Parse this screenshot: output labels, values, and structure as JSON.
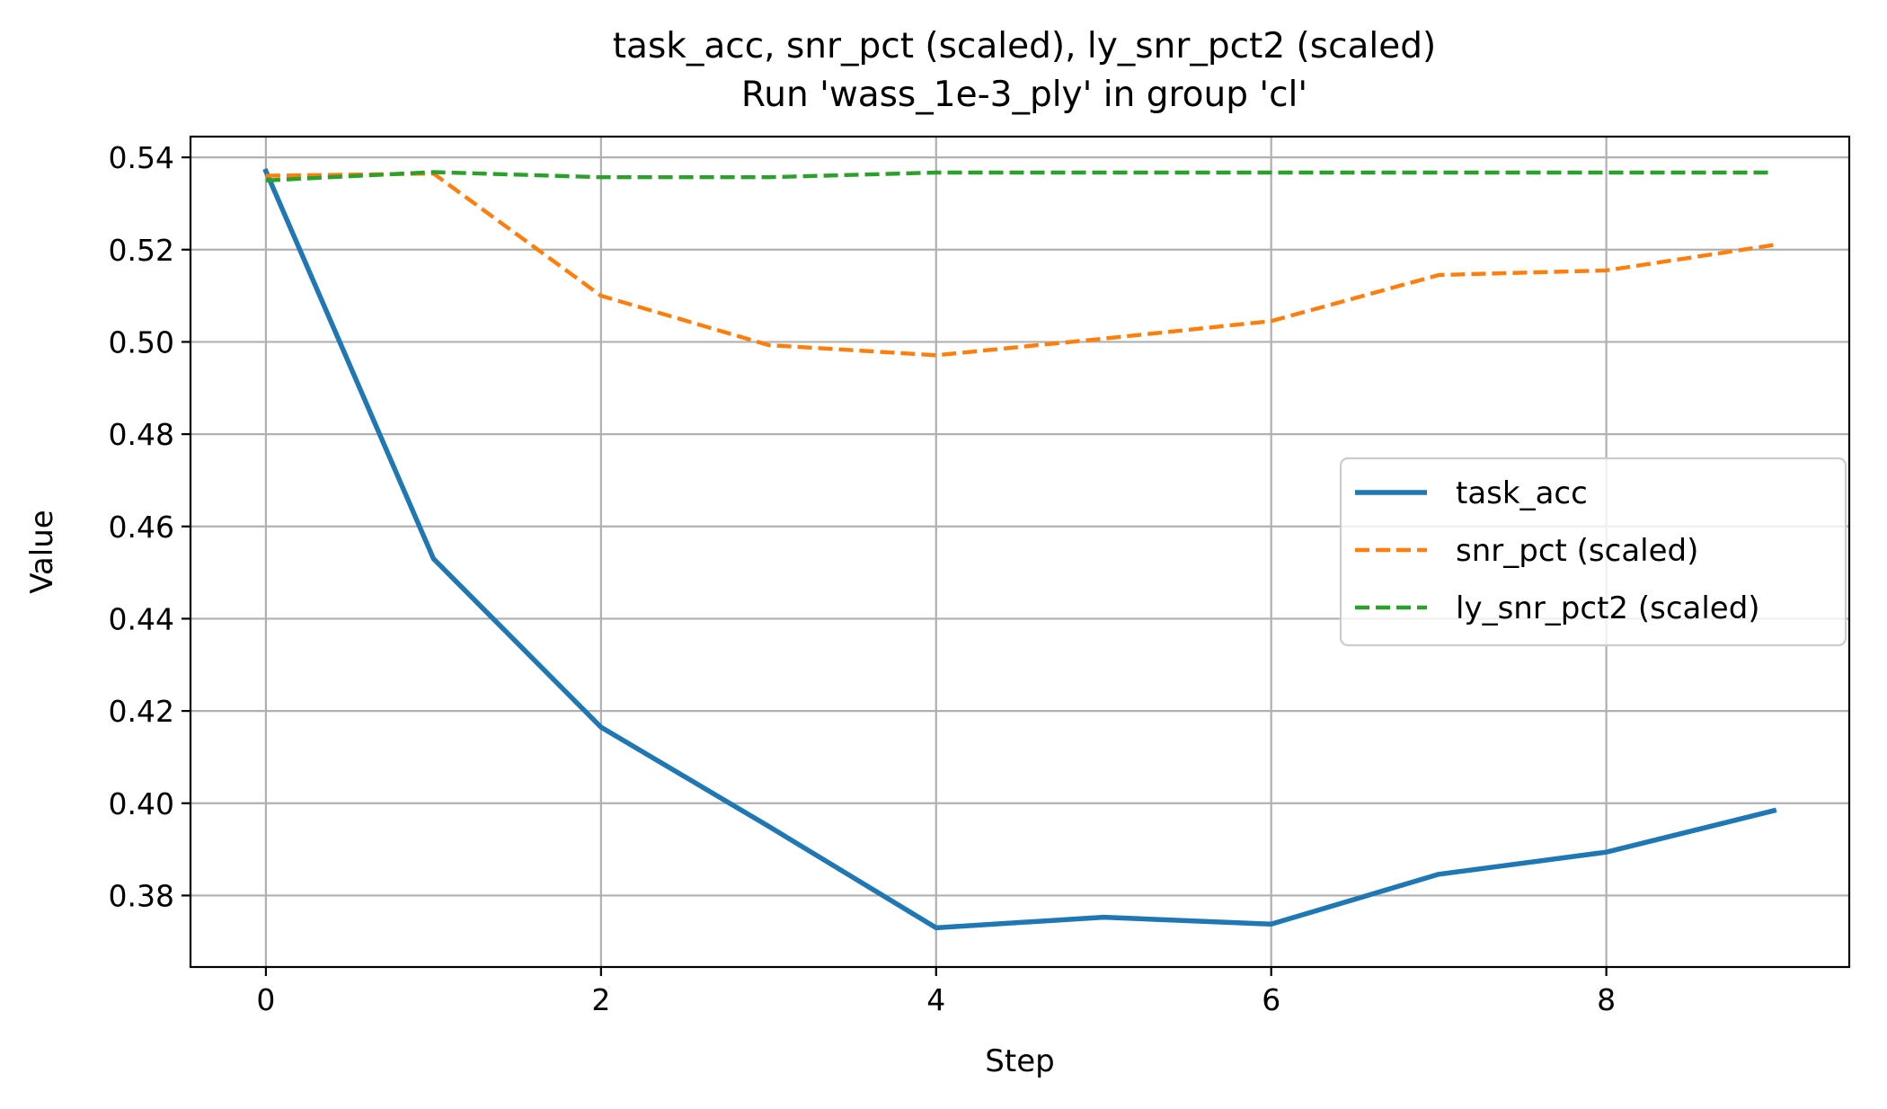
{
  "chart_data": {
    "type": "line",
    "title": "task_acc, snr_pct (scaled), ly_snr_pct2 (scaled)",
    "subtitle": "Run 'wass_1e-3_ply' in group 'cl'",
    "xlabel": "Step",
    "ylabel": "Value",
    "x": [
      0,
      1,
      2,
      3,
      4,
      5,
      6,
      7,
      8,
      9
    ],
    "xlim": [
      -0.45,
      9.45
    ],
    "ylim": [
      0.3645,
      0.5445
    ],
    "xticks": [
      0,
      2,
      4,
      6,
      8
    ],
    "xtick_labels": [
      "0",
      "2",
      "4",
      "6",
      "8"
    ],
    "yticks": [
      0.38,
      0.4,
      0.42,
      0.44,
      0.46,
      0.48,
      0.5,
      0.52,
      0.54
    ],
    "ytick_labels": [
      "0.38",
      "0.40",
      "0.42",
      "0.44",
      "0.46",
      "0.48",
      "0.50",
      "0.52",
      "0.54"
    ],
    "grid": true,
    "legend_position": "center-right",
    "series": [
      {
        "name": "task_acc",
        "color": "#1f77b4",
        "style": "solid",
        "values": [
          0.537,
          0.453,
          0.4165,
          0.395,
          0.373,
          0.3753,
          0.3738,
          0.3846,
          0.3894,
          0.3984
        ]
      },
      {
        "name": "snr_pct (scaled)",
        "color": "#ff7f0e",
        "style": "dashed",
        "values": [
          0.536,
          0.5365,
          0.51,
          0.4993,
          0.4971,
          0.5007,
          0.5045,
          0.5145,
          0.5155,
          0.521
        ]
      },
      {
        "name": "ly_snr_pct2 (scaled)",
        "color": "#2ca02c",
        "style": "dashed",
        "values": [
          0.535,
          0.5368,
          0.5357,
          0.5357,
          0.5367,
          0.5367,
          0.5367,
          0.5367,
          0.5367,
          0.5367
        ]
      }
    ]
  }
}
